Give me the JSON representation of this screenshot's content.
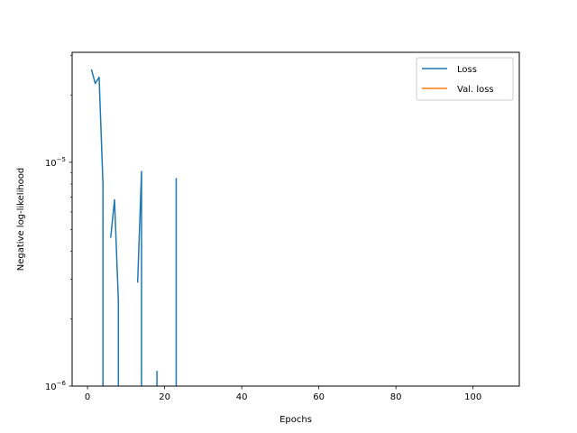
{
  "chart_data": {
    "type": "line",
    "title": "",
    "xlabel": "Epochs",
    "ylabel": "Negative log-likelihood",
    "xlim": [
      -4,
      112
    ],
    "ylim": [
      1e-06,
      3.1e-05
    ],
    "yscale": "log",
    "grid": false,
    "legend_position": "top-right",
    "x_ticks": [
      0,
      20,
      40,
      60,
      80,
      100
    ],
    "y_ticks": [
      {
        "value": 1e-06,
        "base": "10",
        "exponent": "−6"
      },
      {
        "value": 1e-05,
        "base": "10",
        "exponent": "−5"
      }
    ],
    "series": [
      {
        "name": "Loss",
        "color": "#1f77b4",
        "points": [
          [
            1,
            2.6e-05
          ],
          [
            2,
            2.25e-05
          ],
          [
            3,
            2.4e-05
          ],
          [
            4,
            8e-06
          ],
          [
            4,
            null
          ],
          [
            6,
            4.6e-06
          ],
          [
            7,
            6.8e-06
          ],
          [
            8,
            2.4e-06
          ],
          [
            8,
            null
          ],
          [
            13,
            2.9e-06
          ],
          [
            14,
            9.1e-06
          ],
          [
            14,
            null
          ],
          [
            18,
            1.17e-06
          ],
          [
            18,
            null
          ],
          [
            23,
            8.5e-06
          ],
          [
            23,
            null
          ]
        ]
      },
      {
        "name": "Val. loss",
        "color": "#ff7f0e",
        "points": []
      }
    ]
  }
}
